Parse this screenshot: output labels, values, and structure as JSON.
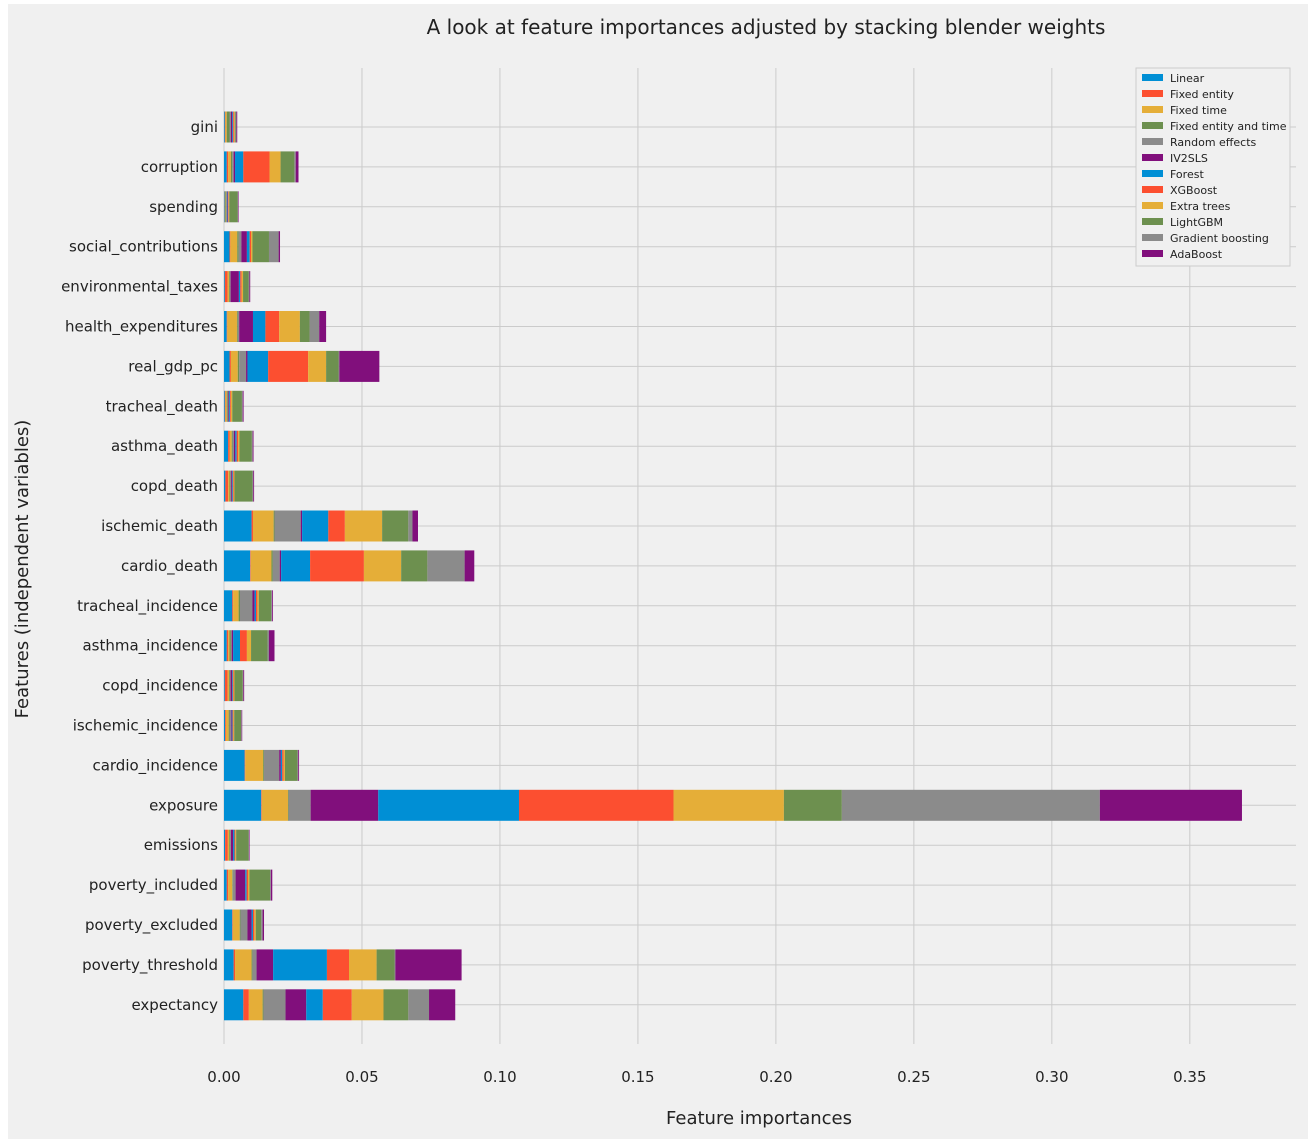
{
  "chart_data": {
    "type": "bar",
    "orientation": "horizontal",
    "stacked": true,
    "title": "A look at feature importances adjusted by stacking blender weights",
    "xlabel": "Feature importances",
    "ylabel": "Features (independent variables)",
    "xlim": [
      0,
      0.385
    ],
    "xticks": [
      0.0,
      0.05,
      0.1,
      0.15,
      0.2,
      0.25,
      0.3,
      0.35
    ],
    "xtick_labels": [
      "0.00",
      "0.05",
      "0.10",
      "0.15",
      "0.20",
      "0.25",
      "0.30",
      "0.35"
    ],
    "grid": true,
    "legend_position": "top-right",
    "categories": [
      "gini",
      "corruption",
      "spending",
      "social_contributions",
      "environmental_taxes",
      "health_expenditures",
      "real_gdp_pc",
      "tracheal_death",
      "asthma_death",
      "copd_death",
      "ischemic_death",
      "cardio_death",
      "tracheal_incidence",
      "asthma_incidence",
      "copd_incidence",
      "ischemic_incidence",
      "cardio_incidence",
      "exposure",
      "emissions",
      "poverty_included",
      "poverty_excluded",
      "poverty_threshold",
      "expectancy"
    ],
    "series": [
      {
        "name": "Linear",
        "color": "#008fd5",
        "values": [
          0.0003,
          0.001,
          0.0002,
          0.002,
          0.0003,
          0.001,
          0.002,
          0.0003,
          0.0015,
          0.0005,
          0.01,
          0.0095,
          0.003,
          0.001,
          0.0003,
          0.0004,
          0.0075,
          0.0135,
          0.0004,
          0.001,
          0.003,
          0.0035,
          0.007
        ]
      },
      {
        "name": "Fixed entity",
        "color": "#fc4f30",
        "values": [
          0.0002,
          0.0005,
          0.0001,
          0.0003,
          0.001,
          0.0002,
          0.0005,
          0.0002,
          0.0005,
          0.001,
          0.0005,
          0.0002,
          0.0003,
          0.0005,
          0.001,
          0.0003,
          0.0002,
          0.0002,
          0.001,
          0.0005,
          0.0002,
          0.0005,
          0.002
        ]
      },
      {
        "name": "Fixed time",
        "color": "#e5ae38",
        "values": [
          0.0005,
          0.001,
          0.0002,
          0.0025,
          0.0005,
          0.0035,
          0.0025,
          0.0005,
          0.0008,
          0.0005,
          0.0075,
          0.0075,
          0.002,
          0.0005,
          0.0005,
          0.001,
          0.0065,
          0.0095,
          0.0005,
          0.0015,
          0.0025,
          0.006,
          0.005
        ]
      },
      {
        "name": "Fixed entity and time",
        "color": "#6d904f",
        "values": [
          0.001,
          0.0005,
          0.0003,
          0.0005,
          0.0003,
          0.0003,
          0.0005,
          0.0003,
          0.0003,
          0.0003,
          0.0003,
          0.0005,
          0.0005,
          0.0005,
          0.0003,
          0.0003,
          0.0003,
          0.0002,
          0.0003,
          0.0002,
          0.0003,
          0.0003,
          0.0003
        ]
      },
      {
        "name": "Random effects",
        "color": "#8b8b8b",
        "values": [
          0.0005,
          0.0005,
          0.0003,
          0.001,
          0.0003,
          0.0005,
          0.0025,
          0.0003,
          0.0005,
          0.0003,
          0.0095,
          0.0025,
          0.0045,
          0.0003,
          0.0003,
          0.0005,
          0.0055,
          0.008,
          0.0003,
          0.001,
          0.0025,
          0.0015,
          0.008
        ]
      },
      {
        "name": "IV2SLS",
        "color": "#810f7c",
        "values": [
          0.0005,
          0.0005,
          0.0002,
          0.002,
          0.003,
          0.005,
          0.0005,
          0.0003,
          0.0005,
          0.0003,
          0.0005,
          0.0005,
          0.0008,
          0.0005,
          0.0005,
          0.0003,
          0.0006,
          0.0245,
          0.0008,
          0.0035,
          0.0015,
          0.006,
          0.0075
        ]
      },
      {
        "name": "Forest",
        "color": "#008fd5",
        "values": [
          0.0003,
          0.003,
          0.0002,
          0.001,
          0.0005,
          0.0045,
          0.0075,
          0.0003,
          0.0005,
          0.0003,
          0.0095,
          0.0105,
          0.0005,
          0.0025,
          0.0003,
          0.0003,
          0.0005,
          0.051,
          0.0005,
          0.0005,
          0.0005,
          0.0195,
          0.006
        ]
      },
      {
        "name": "XGBoost",
        "color": "#fc4f30",
        "values": [
          0.0003,
          0.0095,
          0.0002,
          0.0005,
          0.0005,
          0.005,
          0.0145,
          0.0003,
          0.0005,
          0.0003,
          0.006,
          0.0195,
          0.0005,
          0.0025,
          0.0003,
          0.0003,
          0.0005,
          0.056,
          0.0003,
          0.0005,
          0.0005,
          0.008,
          0.0105
        ]
      },
      {
        "name": "Extra trees",
        "color": "#e5ae38",
        "values": [
          0.0003,
          0.004,
          0.0002,
          0.0005,
          0.0005,
          0.0075,
          0.0065,
          0.0005,
          0.0005,
          0.0003,
          0.0135,
          0.0135,
          0.0005,
          0.0015,
          0.0003,
          0.0003,
          0.0005,
          0.04,
          0.0003,
          0.0005,
          0.0005,
          0.01,
          0.0115
        ]
      },
      {
        "name": "LightGBM",
        "color": "#6d904f",
        "values": [
          0.0003,
          0.005,
          0.003,
          0.006,
          0.002,
          0.0035,
          0.0045,
          0.0035,
          0.0045,
          0.0065,
          0.0095,
          0.0095,
          0.0045,
          0.006,
          0.003,
          0.0025,
          0.0045,
          0.021,
          0.0045,
          0.0075,
          0.002,
          0.0065,
          0.009
        ]
      },
      {
        "name": "Gradient boosting",
        "color": "#8b8b8b",
        "values": [
          0.0003,
          0.0005,
          0.0002,
          0.0035,
          0.0003,
          0.0035,
          0.0003,
          0.0003,
          0.0003,
          0.0003,
          0.0015,
          0.0135,
          0.0003,
          0.0005,
          0.0002,
          0.0002,
          0.0003,
          0.0935,
          0.0002,
          0.0003,
          0.0005,
          0.0003,
          0.0075
        ]
      },
      {
        "name": "AdaBoost",
        "color": "#810f7c",
        "values": [
          0.0003,
          0.001,
          0.0002,
          0.0005,
          0.0003,
          0.0025,
          0.0145,
          0.0003,
          0.0003,
          0.0003,
          0.002,
          0.0035,
          0.0003,
          0.002,
          0.0003,
          0.0002,
          0.0003,
          0.0515,
          0.0002,
          0.0005,
          0.0005,
          0.024,
          0.0095
        ]
      }
    ]
  }
}
